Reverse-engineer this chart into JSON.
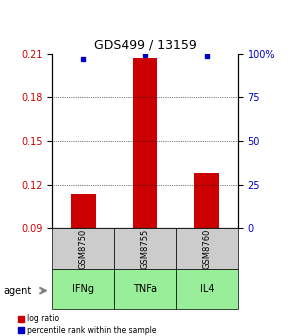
{
  "title": "GDS499 / 13159",
  "samples": [
    "GSM8750",
    "GSM8755",
    "GSM8760"
  ],
  "agents": [
    "IFNg",
    "TNFa",
    "IL4"
  ],
  "log_ratios": [
    0.114,
    0.207,
    0.128
  ],
  "percentile_ranks": [
    0.97,
    0.995,
    0.99
  ],
  "y_min": 0.09,
  "y_max": 0.21,
  "y_ticks": [
    0.09,
    0.12,
    0.15,
    0.18,
    0.21
  ],
  "y2_ticks": [
    0,
    25,
    50,
    75,
    100
  ],
  "bar_color": "#cc0000",
  "dot_color": "#0000cc",
  "sample_bg": "#cccccc",
  "agent_bg": "#99ee99",
  "title_color": "#000000",
  "left_label_color": "#cc0000",
  "right_label_color": "#0000cc",
  "bar_width": 0.4,
  "dot_size": 3.2
}
